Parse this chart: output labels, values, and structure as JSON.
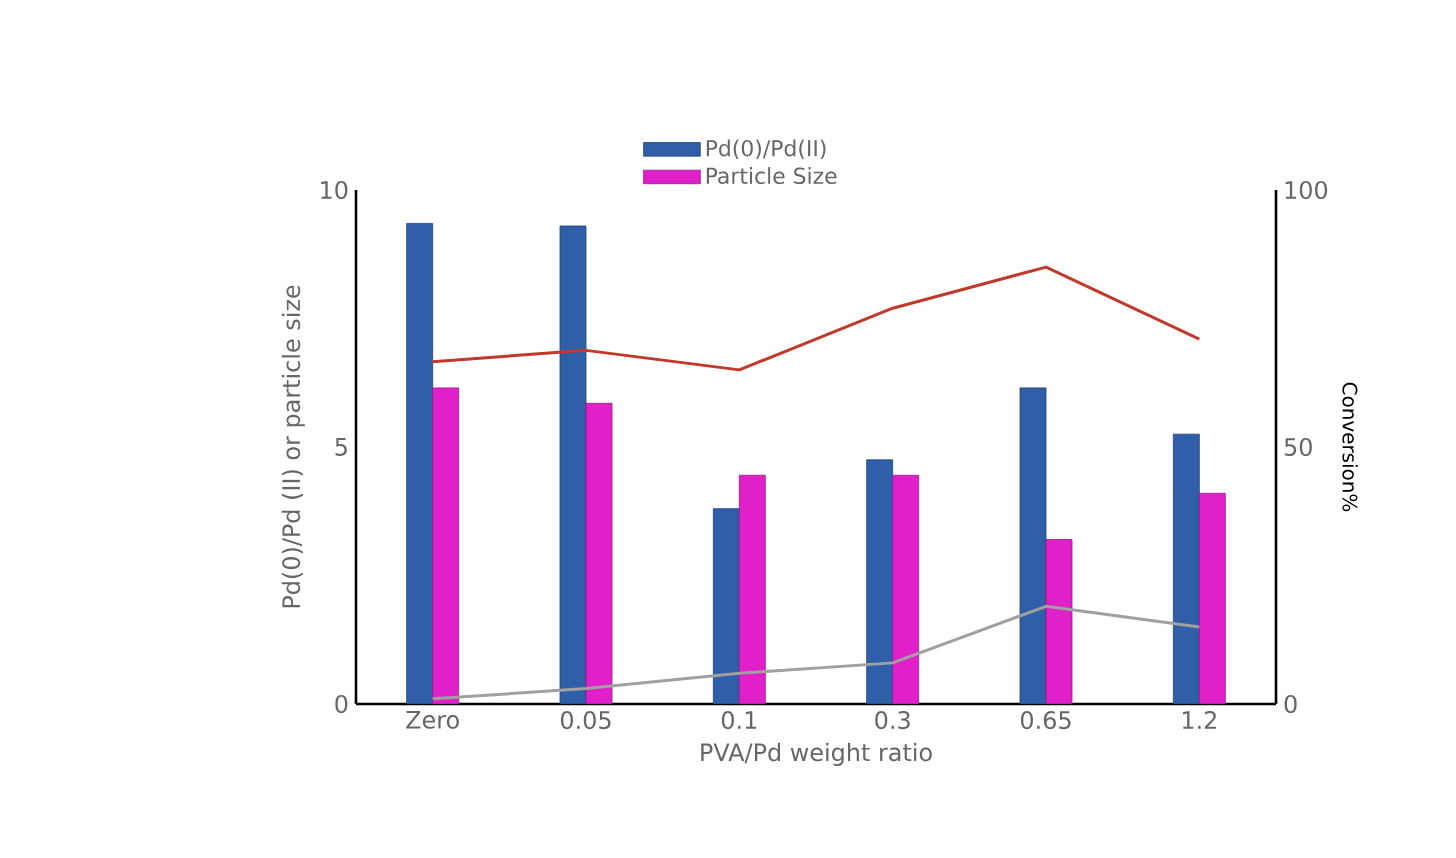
{
  "chart_data": {
    "type": "bar",
    "xlabel": "PVA/Pd weight ratio",
    "ylabel": "Pd(0)/Pd (II) or particle size",
    "y2label": "Conversion%",
    "categories": [
      "Zero",
      "0.05",
      "0.1",
      "0.3",
      "0.65",
      "1.2"
    ],
    "series": [
      {
        "name": "Pd(0)/Pd(II)",
        "color": "#2e5fa8",
        "values": [
          9.35,
          9.3,
          3.8,
          4.75,
          6.15,
          5.25
        ]
      },
      {
        "name": "Particle Size",
        "color": "#e020c8",
        "values": [
          6.15,
          5.85,
          4.45,
          4.45,
          3.2,
          4.1
        ]
      },
      {
        "type": "line",
        "axis": "y2",
        "color": "#c0392b",
        "values": [
          66.6,
          68.8,
          65,
          77,
          85,
          71
        ]
      },
      {
        "type": "line",
        "axis": "y2",
        "color": "#a0a0a0",
        "values": [
          1,
          3,
          6,
          8,
          19,
          15
        ]
      }
    ],
    "ylim": [
      0,
      10
    ],
    "yticks": [
      0,
      5,
      10
    ],
    "y2lim": [
      0,
      100
    ],
    "y2ticks": [
      0,
      50,
      100
    ],
    "legend": "top",
    "marker": "none"
  }
}
